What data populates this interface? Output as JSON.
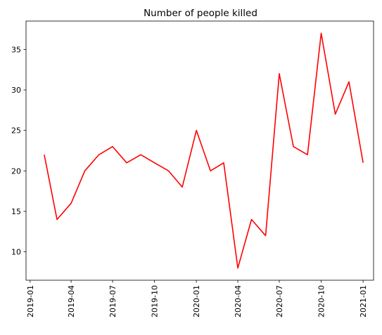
{
  "chart_data": {
    "type": "line",
    "title": "Number of people killed",
    "xlabel": "",
    "ylabel": "",
    "series": [
      {
        "color": "#ff0000",
        "x": [
          "2019-02-01",
          "2019-03-01",
          "2019-04-01",
          "2019-05-01",
          "2019-06-01",
          "2019-07-01",
          "2019-08-01",
          "2019-09-01",
          "2019-10-01",
          "2019-11-01",
          "2019-12-01",
          "2020-01-01",
          "2020-02-01",
          "2020-03-01",
          "2020-04-01",
          "2020-05-01",
          "2020-06-01",
          "2020-07-01",
          "2020-08-01",
          "2020-09-01",
          "2020-10-01",
          "2020-11-01",
          "2020-12-01",
          "2021-01-01"
        ],
        "values": [
          22,
          14,
          16,
          20,
          22,
          23,
          21,
          22,
          21,
          20,
          18,
          25,
          20,
          21,
          8,
          14,
          12,
          32,
          23,
          22,
          37,
          27,
          31,
          21
        ]
      }
    ],
    "xlim": [
      "2018-12-23",
      "2021-01-24"
    ],
    "ylim": [
      6.5,
      38.5
    ],
    "x_ticks": [
      "2019-01",
      "2019-04",
      "2019-07",
      "2019-10",
      "2020-01",
      "2020-04",
      "2020-07",
      "2020-10",
      "2021-01"
    ],
    "y_ticks": [
      10,
      15,
      20,
      25,
      30,
      35
    ],
    "grid": false,
    "legend": "none"
  }
}
